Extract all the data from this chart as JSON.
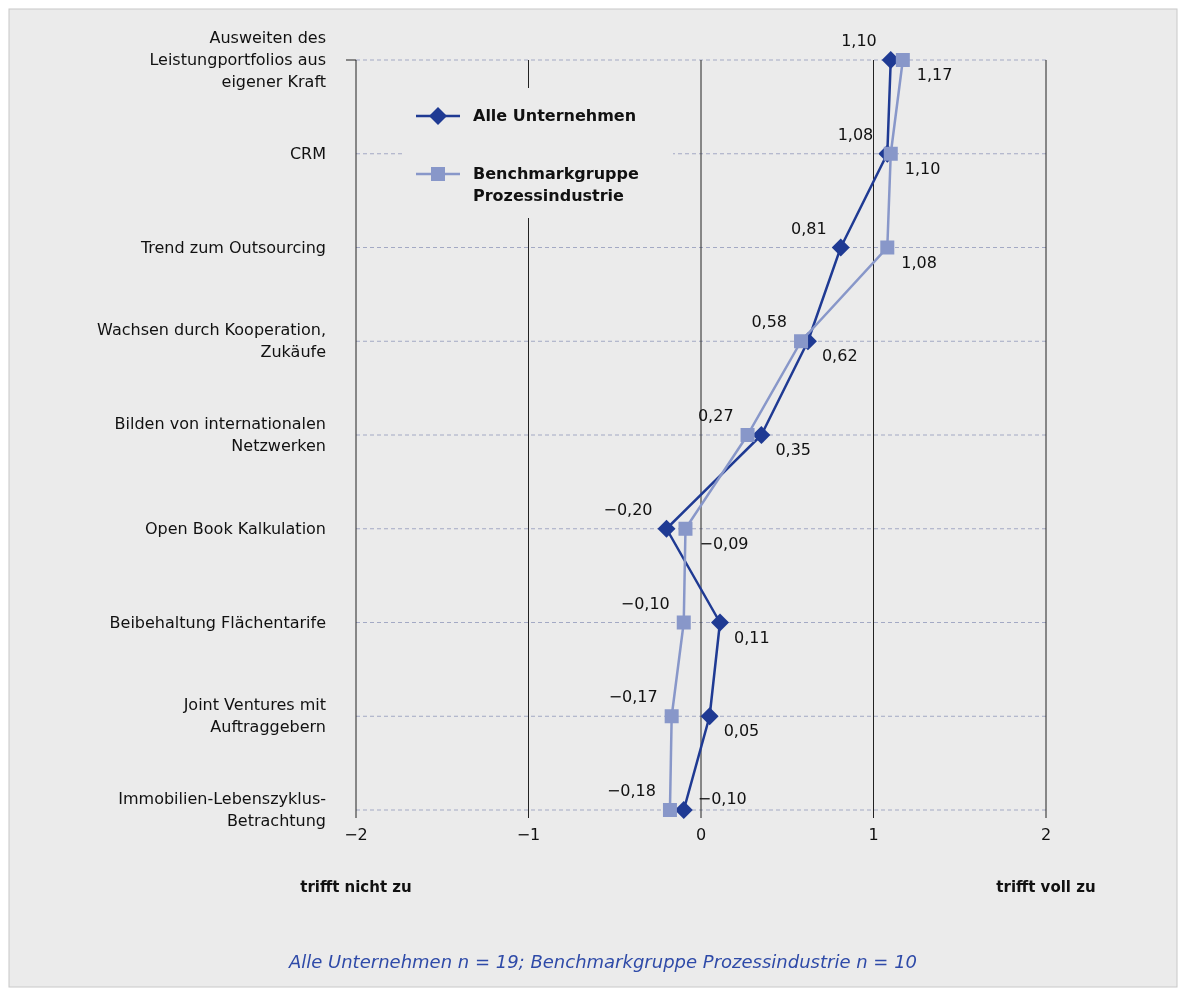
{
  "chart_data": {
    "type": "line",
    "orientation": "horizontal",
    "categories": [
      "Ausweiten des Leistungportfolios aus eigener Kraft",
      "CRM",
      "Trend zum Outsourcing",
      "Wachsen durch Kooperation, Zukäufe",
      "Bilden von internationalen Netzwerken",
      "Open Book Kalkulation",
      "Beibehaltung Flächentarife",
      "Joint Ventures mit Auftraggebern",
      "Immobilien-Lebenszyklus-Betrachtung"
    ],
    "series": [
      {
        "name": "Alle Unternehmen",
        "color": "#1f3a93",
        "marker": "diamond",
        "values": [
          1.1,
          1.08,
          0.81,
          0.62,
          0.35,
          -0.2,
          0.11,
          0.05,
          -0.1
        ],
        "value_labels": [
          "1,10",
          "1,08",
          "0,81",
          "0,62",
          "0,35",
          "−0,20",
          "0,11",
          "0,05",
          "−0,10"
        ]
      },
      {
        "name": "Benchmarkgruppe Prozessindustrie",
        "color": "#8897c9",
        "marker": "square",
        "values": [
          1.17,
          1.1,
          1.08,
          0.58,
          0.27,
          -0.09,
          -0.1,
          -0.17,
          -0.18
        ],
        "value_labels": [
          "1,17",
          "1,10",
          "1,08",
          "0,58",
          "0,27",
          "−0,09",
          "−0,10",
          "−0,17",
          "−0,18"
        ]
      }
    ],
    "xlim": [
      -2,
      2
    ],
    "xticks": [
      {
        "value": -2,
        "label": "−2"
      },
      {
        "value": -1,
        "label": "−1"
      },
      0,
      1,
      2
    ],
    "grid": true,
    "legend": "top left",
    "annotations": [
      "trifft nicht zu",
      "trifft voll zu",
      "Alle Unternehmen n = 19; Benchmarkgruppe Prozessindustrie n = 10"
    ]
  }
}
